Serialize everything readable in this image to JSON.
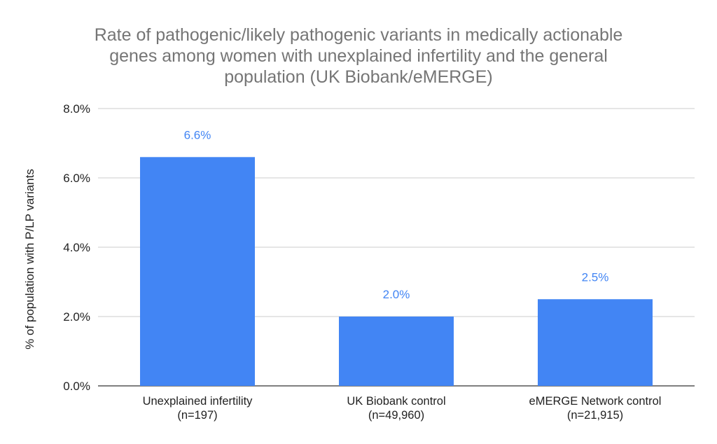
{
  "chart_data": {
    "type": "bar",
    "title_lines": [
      "Rate of pathogenic/likely pathogenic variants in medically actionable",
      "genes among women with unexplained infertility and the general",
      "population (UK Biobank/eMERGE)"
    ],
    "ylabel": "% of population with P/LP variants",
    "xlabel": "",
    "ylim": [
      0,
      8
    ],
    "yticks": [
      "0.0%",
      "2.0%",
      "4.0%",
      "6.0%",
      "8.0%"
    ],
    "ytick_values": [
      0,
      2,
      4,
      6,
      8
    ],
    "categories": [
      [
        "Unexplained infertility",
        "(n=197)"
      ],
      [
        "UK Biobank control",
        "(n=49,960)"
      ],
      [
        "eMERGE Network control",
        "(n=21,915)"
      ]
    ],
    "values": [
      6.6,
      2.0,
      2.5
    ],
    "data_labels": [
      "6.6%",
      "2.0%",
      "2.5%"
    ],
    "grid": true,
    "legend": "none",
    "colors": {
      "bar": "#4285f4",
      "data_label": "#4285f4",
      "title": "#757575",
      "grid": "#cccccc"
    }
  }
}
